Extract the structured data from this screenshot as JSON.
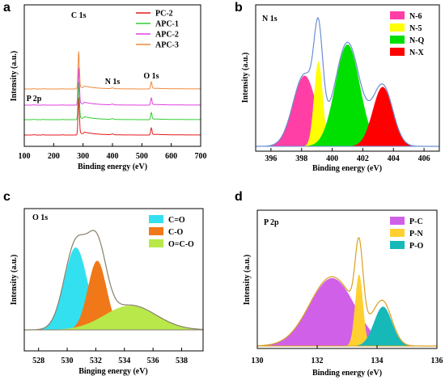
{
  "chart_data": [
    {
      "id": "a",
      "type": "line",
      "panel_letter": "a",
      "xlabel": "Binding energy (eV)",
      "ylabel": "Intensity (a.u.)",
      "xlim": [
        100,
        700
      ],
      "xticks": [
        "100",
        "200",
        "300",
        "400",
        "500",
        "600",
        "700"
      ],
      "legend_placement": "top-right",
      "annotations": [
        {
          "text": "C 1s",
          "x": 285
        },
        {
          "text": "N 1s",
          "x": 400
        },
        {
          "text": "O 1s",
          "x": 532
        },
        {
          "text": "P 2p",
          "x": 133
        }
      ],
      "series": [
        {
          "name": "PC-2",
          "color": "#e31a1c",
          "offset": 0.0
        },
        {
          "name": "APC-1",
          "color": "#33cc33",
          "offset": 0.9
        },
        {
          "name": "APC-2",
          "color": "#e040e0",
          "offset": 1.8
        },
        {
          "name": "APC-3",
          "color": "#f08a3c",
          "offset": 2.7
        }
      ]
    },
    {
      "id": "b",
      "type": "area",
      "panel_letter": "b",
      "title": "N 1s",
      "xlabel": "Binding energy (eV)",
      "ylabel": "Intensity (a.u.)",
      "xlim": [
        395,
        407
      ],
      "xticks": [
        "396",
        "398",
        "400",
        "402",
        "404",
        "406"
      ],
      "legend_placement": "top-right",
      "envelope_color": "#6a8fd0",
      "series": [
        {
          "name": "N-6",
          "color": "#ff3fa6",
          "center": 398.2,
          "height": 0.5,
          "width": 0.75
        },
        {
          "name": "N-5",
          "color": "#ffff00",
          "center": 399.1,
          "height": 0.6,
          "width": 0.28
        },
        {
          "name": "N-Q",
          "color": "#00e000",
          "center": 401.0,
          "height": 0.72,
          "width": 0.8
        },
        {
          "name": "N-X",
          "color": "#ff0000",
          "center": 403.3,
          "height": 0.42,
          "width": 0.65
        }
      ]
    },
    {
      "id": "c",
      "type": "area",
      "panel_letter": "c",
      "title": "O 1s",
      "xlabel": "Binging energy (eV)",
      "ylabel": "Intensity (a.u.)",
      "xlim": [
        527,
        539.5
      ],
      "xticks": [
        "528",
        "530",
        "532",
        "534",
        "536",
        "538"
      ],
      "legend_placement": "top-left",
      "envelope_color": "#8a7f6a",
      "series": [
        {
          "name": "C=O",
          "color": "#33e0f0",
          "center": 530.6,
          "height": 0.68,
          "width": 0.8
        },
        {
          "name": "C-O",
          "color": "#f07818",
          "center": 532.1,
          "height": 0.57,
          "width": 0.65
        },
        {
          "name": "O=C-O",
          "color": "#b8e84a",
          "center": 534.4,
          "height": 0.2,
          "width": 1.8
        }
      ]
    },
    {
      "id": "d",
      "type": "area",
      "panel_letter": "d",
      "title": "P 2p",
      "xlabel": "Binding energy (eV)",
      "ylabel": "Intensity (a.u.)",
      "xlim": [
        130,
        136
      ],
      "xticks": [
        "130",
        "132",
        "134",
        "136"
      ],
      "legend_placement": "top-right",
      "envelope_color": "#d9a020",
      "series": [
        {
          "name": "P-C",
          "color": "#d060e8",
          "center": 132.5,
          "height": 0.5,
          "width": 0.75
        },
        {
          "name": "P-N",
          "color": "#ffd030",
          "center": 133.4,
          "height": 0.53,
          "width": 0.13
        },
        {
          "name": "P-O",
          "color": "#17b8b8",
          "center": 134.2,
          "height": 0.29,
          "width": 0.3
        }
      ]
    }
  ]
}
